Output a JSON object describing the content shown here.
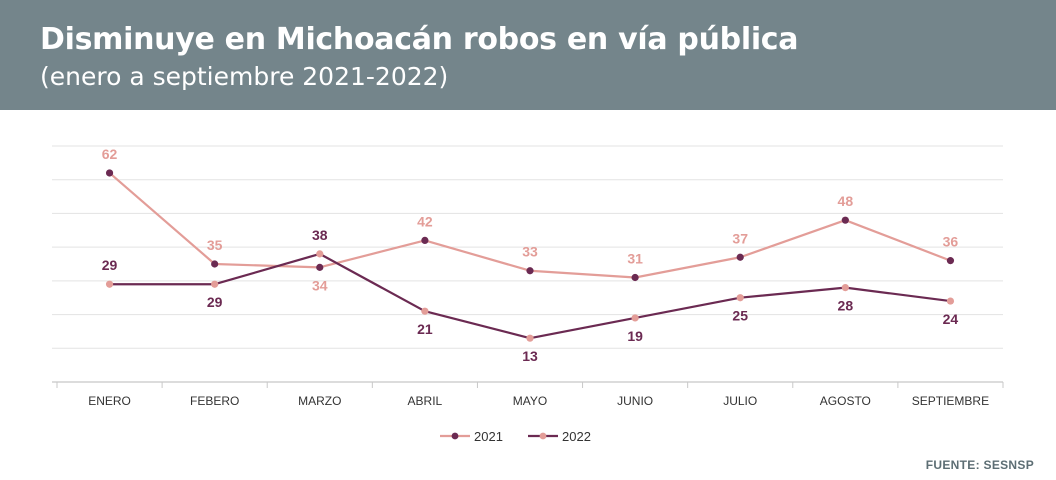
{
  "header": {
    "title": "Disminuye en Michoacán robos en vía pública",
    "subtitle": "(enero a septiembre 2021-2022)"
  },
  "source": "FUENTE: SESNSP",
  "colors": {
    "header_bg": "#74858b",
    "series_2021": "#e39d98",
    "series_2022": "#6b2a52"
  },
  "chart_data": {
    "type": "line",
    "categories": [
      "ENERO",
      "FEBERO",
      "MARZO",
      "ABRIL",
      "MAYO",
      "JUNIO",
      "JULIO",
      "AGOSTO",
      "SEPTIEMBRE"
    ],
    "series": [
      {
        "name": "2021",
        "values": [
          62,
          35,
          34,
          42,
          33,
          31,
          37,
          48,
          36
        ]
      },
      {
        "name": "2022",
        "values": [
          29,
          29,
          38,
          21,
          13,
          19,
          25,
          28,
          24
        ]
      }
    ],
    "ylim": [
      0,
      70
    ],
    "grid": true,
    "legend_position": "bottom-center"
  }
}
